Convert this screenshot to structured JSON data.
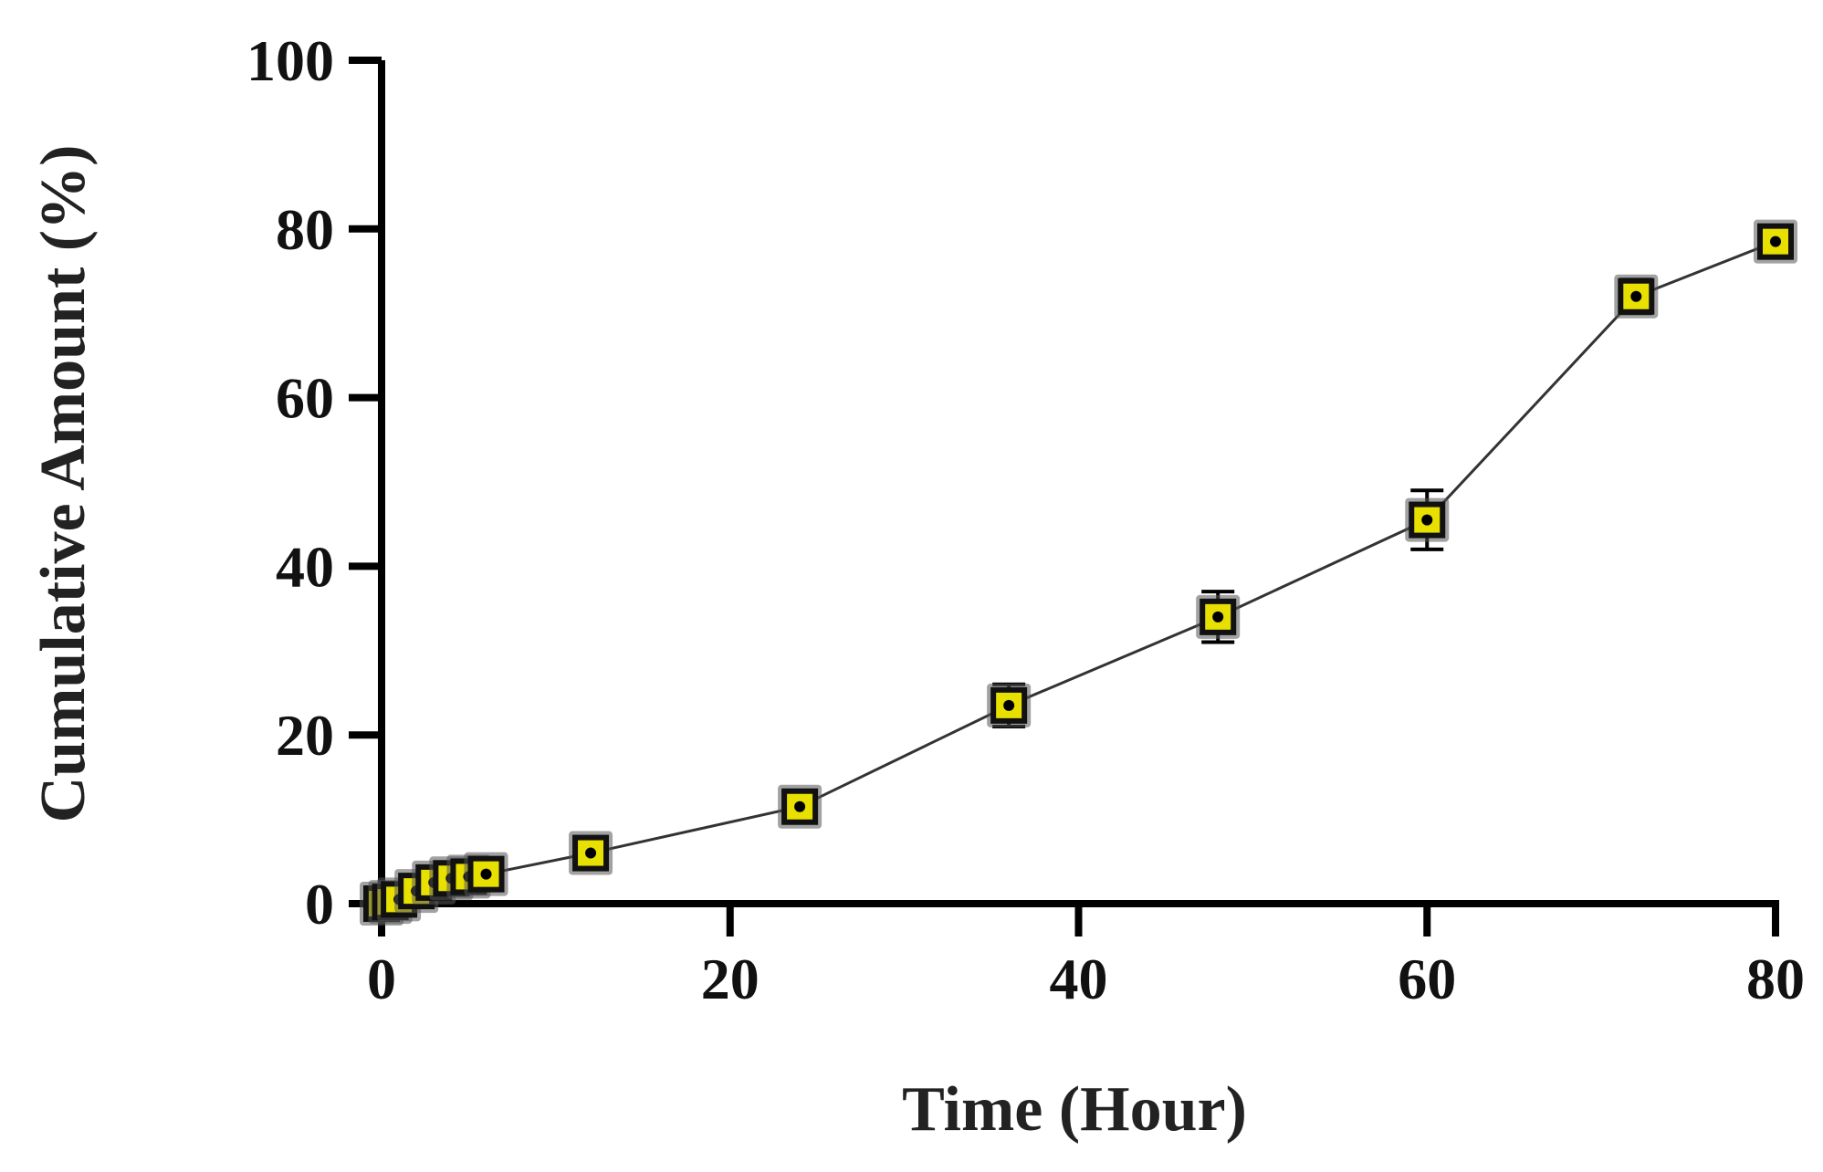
{
  "chart_data": {
    "type": "line",
    "xlabel": "Time (Hour)",
    "ylabel": "Cumulative Amount (%)",
    "xlim": [
      0,
      80
    ],
    "ylim": [
      0,
      100
    ],
    "x_ticks": [
      "0",
      "20",
      "40",
      "60",
      "80"
    ],
    "y_ticks": [
      "0",
      "20",
      "40",
      "60",
      "80",
      "100"
    ],
    "grid": false,
    "legend": "none",
    "colors": {
      "marker_fill": "#E8E000",
      "marker_edge": "#111111",
      "line": "#333333"
    },
    "series": [
      {
        "x": [
          0,
          0.5,
          1,
          2,
          3,
          4,
          5,
          6,
          12,
          24,
          36,
          48,
          60,
          72,
          80
        ],
        "y": [
          0,
          0.2,
          0.5,
          1.5,
          2.5,
          3.0,
          3.2,
          3.5,
          6.0,
          11.5,
          23.5,
          34.0,
          45.5,
          72.0,
          78.5
        ],
        "error": [
          0.3,
          0.3,
          0.3,
          0.5,
          0.5,
          0.5,
          0.5,
          0.5,
          1.0,
          1.5,
          2.5,
          3.0,
          3.5,
          2.0,
          1.5
        ]
      }
    ]
  }
}
